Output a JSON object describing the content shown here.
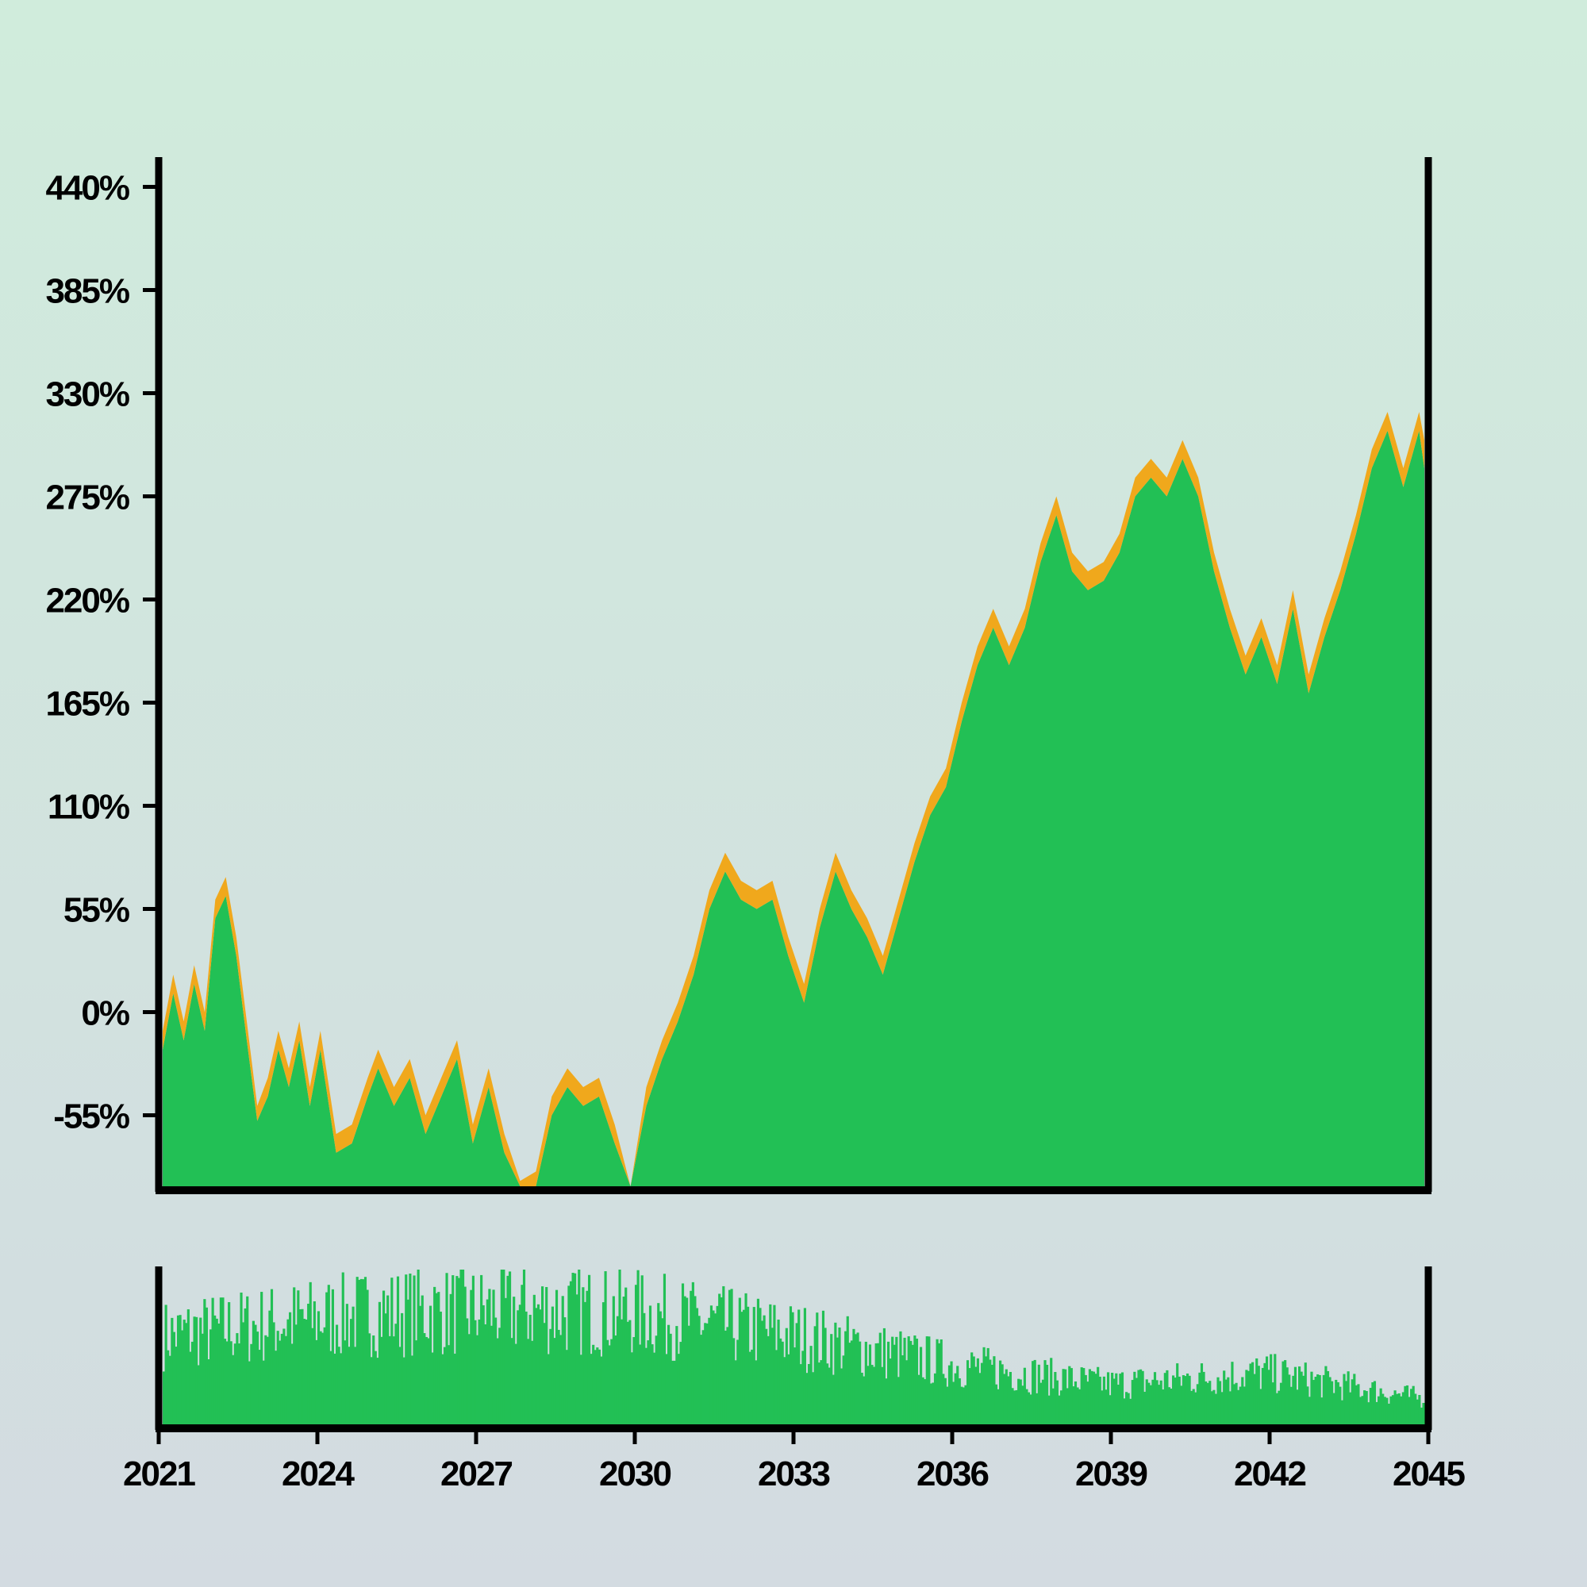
{
  "chart_data": [
    {
      "type": "area",
      "title": "",
      "xlabel": "",
      "ylabel": "",
      "xlim": [
        2021.0,
        2045.0
      ],
      "ylim": [
        -110,
        470
      ],
      "y_ticks": [
        -55,
        0,
        55,
        110,
        165,
        220,
        275,
        330,
        385,
        440
      ],
      "y_tick_labels": [
        "-55%",
        "0%",
        "55%",
        "110%",
        "165%",
        "220%",
        "275%",
        "330%",
        "385%",
        "440%"
      ],
      "grid": false,
      "legend": "none",
      "colors": {
        "fill": "#22c055",
        "band": "#f0a81c",
        "axes": "#000000"
      },
      "series": [
        {
          "values_x": [
            2021.0,
            2021.2,
            2021.4,
            2021.6,
            2021.8,
            2022.0,
            2022.2,
            2022.4,
            2022.6,
            2022.8,
            2023.0,
            2023.2,
            2023.4,
            2023.6,
            2023.8,
            2024.0,
            2024.3,
            2024.6,
            2024.9,
            2025.1,
            2025.4,
            2025.7,
            2026.0,
            2026.3,
            2026.6,
            2026.9,
            2027.2,
            2027.5,
            2027.8,
            2028.1,
            2028.4,
            2028.7,
            2029.0,
            2029.3,
            2029.6,
            2029.9,
            2030.2,
            2030.5,
            2030.8,
            2031.1,
            2031.4,
            2031.7,
            2032.0,
            2032.3,
            2032.6,
            2032.9,
            2033.2,
            2033.5,
            2033.8,
            2034.1,
            2034.4,
            2034.7,
            2035.0,
            2035.3,
            2035.6,
            2035.9,
            2036.2,
            2036.5,
            2036.8,
            2037.1,
            2037.4,
            2037.7,
            2038.0,
            2038.3,
            2038.6,
            2038.9,
            2039.2,
            2039.5,
            2039.8,
            2040.1,
            2040.4,
            2040.7,
            2041.0,
            2041.3,
            2041.6,
            2041.9,
            2042.2,
            2042.5,
            2042.8,
            2043.1,
            2043.4,
            2043.7,
            2044.0,
            2044.3,
            2044.6,
            2044.9,
            2045.0
          ],
          "upper": [
            -10,
            20,
            -5,
            25,
            0,
            60,
            72,
            40,
            -5,
            -50,
            -35,
            -10,
            -30,
            -5,
            -40,
            -10,
            -65,
            -60,
            -35,
            -20,
            -40,
            -25,
            -55,
            -35,
            -15,
            -60,
            -30,
            -65,
            -90,
            -85,
            -45,
            -30,
            -40,
            -35,
            -60,
            -95,
            -40,
            -15,
            5,
            30,
            65,
            85,
            70,
            65,
            70,
            40,
            15,
            55,
            85,
            65,
            50,
            30,
            60,
            90,
            115,
            130,
            165,
            195,
            215,
            195,
            215,
            250,
            275,
            245,
            235,
            240,
            255,
            285,
            295,
            285,
            305,
            285,
            245,
            215,
            190,
            210,
            185,
            225,
            180,
            210,
            235,
            265,
            300,
            320,
            290,
            320,
            305
          ],
          "lower": [
            -20,
            10,
            -15,
            15,
            -10,
            50,
            62,
            30,
            -15,
            -58,
            -45,
            -20,
            -40,
            -15,
            -50,
            -20,
            -75,
            -70,
            -45,
            -30,
            -50,
            -35,
            -65,
            -45,
            -25,
            -70,
            -40,
            -75,
            -100,
            -95,
            -55,
            -40,
            -50,
            -45,
            -70,
            -105,
            -50,
            -25,
            -5,
            20,
            55,
            75,
            60,
            55,
            60,
            30,
            5,
            45,
            75,
            55,
            40,
            20,
            50,
            80,
            105,
            120,
            155,
            185,
            205,
            185,
            205,
            240,
            265,
            235,
            225,
            230,
            245,
            275,
            285,
            275,
            295,
            275,
            235,
            205,
            180,
            200,
            175,
            215,
            170,
            200,
            225,
            255,
            290,
            310,
            280,
            310,
            290
          ]
        }
      ]
    },
    {
      "type": "bar",
      "title": "",
      "x_ticks": [
        2021,
        2024,
        2027,
        2030,
        2033,
        2036,
        2039,
        2042,
        2045
      ],
      "x_tick_labels": [
        "2021",
        "2024",
        "2027",
        "2030",
        "2033",
        "2036",
        "2039",
        "2042",
        "2045"
      ],
      "xlim": [
        2021.0,
        2045.0
      ],
      "ylim": [
        0,
        1
      ],
      "bar_count": 620,
      "trend_x": [
        2021,
        2025,
        2028,
        2030,
        2033,
        2036,
        2039,
        2042,
        2045
      ],
      "trend_level": [
        0.62,
        0.78,
        0.8,
        0.78,
        0.62,
        0.42,
        0.28,
        0.36,
        0.18
      ],
      "colors": {
        "bars": "#22c055"
      }
    }
  ]
}
